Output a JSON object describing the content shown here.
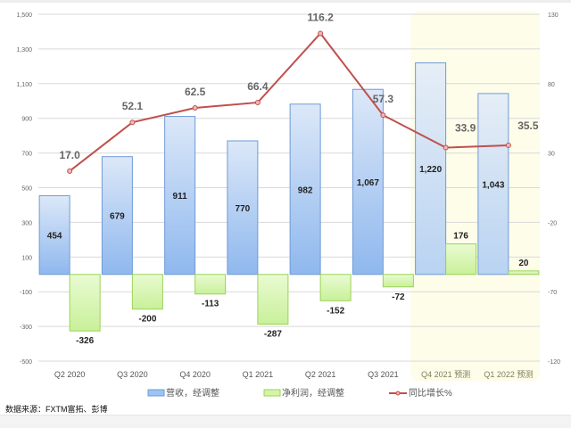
{
  "chart_data": {
    "type": "bar+line",
    "categories": [
      "Q2 2020",
      "Q3 2020",
      "Q4 2020",
      "Q1 2021",
      "Q2 2021",
      "Q3 2021",
      "Q4 2021 预测",
      "Q1 2022 预测"
    ],
    "forecast_categories": [
      "Q4 2021 预测",
      "Q1 2022 预测"
    ],
    "series": [
      {
        "name": "营收，经调整",
        "type": "bar",
        "axis": "left",
        "color": "#9dc3f0",
        "values": [
          454,
          679,
          911,
          770,
          982,
          1067,
          1220,
          1043
        ],
        "labels": [
          "454",
          "679",
          "911",
          "770",
          "982",
          "1,067",
          "1,220",
          "1,043"
        ]
      },
      {
        "name": "净利润，经调整",
        "type": "bar",
        "axis": "left",
        "color": "#d4f5a8",
        "values": [
          -326,
          -200,
          -113,
          -287,
          -152,
          -72,
          176,
          20
        ],
        "labels": [
          "-326",
          "-200",
          "-113",
          "-287",
          "-152",
          "-72",
          "176",
          "20"
        ]
      },
      {
        "name": "同比增长%",
        "type": "line",
        "axis": "right",
        "color": "#c0504d",
        "values": [
          17.0,
          52.1,
          62.5,
          66.4,
          116.2,
          57.3,
          33.9,
          35.5
        ],
        "labels": [
          "17.0",
          "52.1",
          "62.5",
          "66.4",
          "116.2",
          "57.3",
          "33.9",
          "35.5"
        ]
      }
    ],
    "left_axis": {
      "ylim": [
        -500,
        1500
      ],
      "ticks": [
        "1,500",
        "1,300",
        "1,100",
        "900",
        "700",
        "500",
        "300",
        "100",
        "-100",
        "-300",
        "-500"
      ]
    },
    "right_axis": {
      "ylim": [
        -120,
        130
      ],
      "ticks": [
        "130",
        "80",
        "30",
        "-20",
        "-70",
        "-120"
      ]
    },
    "legend_position": "bottom",
    "source": "数据来源：FXTM富拓、彭博"
  }
}
